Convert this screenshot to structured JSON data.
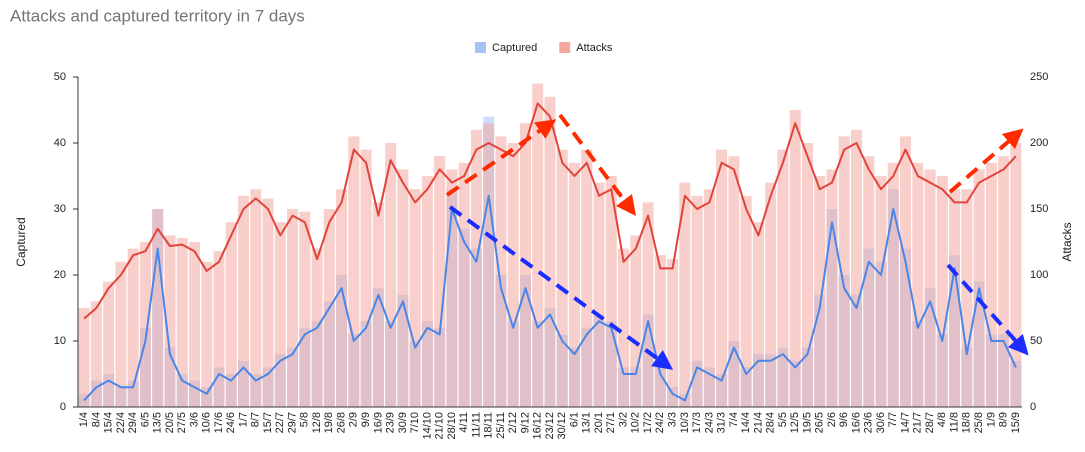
{
  "chart_data": {
    "type": "combo",
    "title": "Attacks and captured territory in 7 days",
    "y_label": "Captured",
    "y2_label": "Attacks",
    "categories": [
      "1/4",
      "8/4",
      "15/4",
      "22/4",
      "29/4",
      "6/5",
      "13/5",
      "20/5",
      "27/5",
      "3/6",
      "10/6",
      "17/6",
      "24/6",
      "1/7",
      "8/7",
      "15/7",
      "22/7",
      "29/7",
      "5/8",
      "12/8",
      "19/8",
      "26/8",
      "2/9",
      "9/9",
      "16/9",
      "23/9",
      "30/9",
      "7/10",
      "14/10",
      "21/10",
      "28/10",
      "4/11",
      "11/11",
      "18/11",
      "25/11",
      "2/12",
      "9/12",
      "16/12",
      "23/12",
      "30/12",
      "6/1",
      "13/1",
      "20/1",
      "27/1",
      "3/2",
      "10/2",
      "17/2",
      "24/2",
      "3/3",
      "10/3",
      "17/3",
      "24/3",
      "31/3",
      "7/4",
      "14/4",
      "21/4",
      "28/4",
      "5/5",
      "12/5",
      "19/5",
      "26/5",
      "2/6",
      "9/6",
      "16/6",
      "23/6",
      "30/6",
      "7/7",
      "14/7",
      "21/7",
      "28/7",
      "4/8",
      "11/8",
      "18/8",
      "25/8",
      "1/9",
      "8/9",
      "15/9"
    ],
    "series": [
      {
        "name": "Captured",
        "color": "#a4c2f4",
        "line_color": "#4a86e8",
        "axis": "y",
        "values": [
          2,
          4,
          5,
          3,
          4,
          12,
          30,
          9,
          5,
          4,
          3,
          6,
          5,
          7,
          5,
          6,
          8,
          9,
          12,
          13,
          16,
          20,
          11,
          13,
          18,
          13,
          17,
          10,
          13,
          12,
          33,
          27,
          24,
          44,
          20,
          13,
          20,
          13,
          15,
          11,
          9,
          12,
          14,
          13,
          6,
          6,
          14,
          6,
          3,
          2,
          7,
          6,
          5,
          10,
          6,
          8,
          8,
          9,
          7,
          9,
          17,
          30,
          20,
          17,
          24,
          22,
          33,
          24,
          13,
          18,
          11,
          23,
          9,
          19,
          11,
          11,
          7
        ],
        "average": [
          1,
          3,
          4,
          3,
          3,
          10,
          24,
          8,
          4,
          3,
          2,
          5,
          4,
          6,
          4,
          5,
          7,
          8,
          11,
          12,
          15,
          18,
          10,
          12,
          17,
          12,
          16,
          9,
          12,
          11,
          30,
          25,
          22,
          32,
          18,
          12,
          18,
          12,
          14,
          10,
          8,
          11,
          13,
          12,
          5,
          5,
          13,
          5,
          2,
          1,
          6,
          5,
          4,
          9,
          5,
          7,
          7,
          8,
          6,
          8,
          15,
          28,
          18,
          15,
          22,
          20,
          30,
          22,
          12,
          16,
          10,
          21,
          8,
          18,
          10,
          10,
          6
        ]
      },
      {
        "name": "Attacks",
        "color": "#f4a8a2",
        "line_color": "#e0443a",
        "axis": "y2",
        "values": [
          75,
          80,
          95,
          110,
          120,
          125,
          150,
          130,
          128,
          125,
          110,
          118,
          140,
          160,
          165,
          158,
          140,
          150,
          148,
          120,
          150,
          165,
          205,
          195,
          155,
          200,
          180,
          165,
          175,
          190,
          180,
          185,
          210,
          215,
          205,
          200,
          215,
          245,
          235,
          195,
          185,
          195,
          170,
          175,
          120,
          130,
          155,
          115,
          112,
          170,
          160,
          165,
          195,
          190,
          160,
          140,
          170,
          195,
          225,
          200,
          175,
          180,
          205,
          210,
          190,
          175,
          185,
          205,
          185,
          180,
          175,
          165,
          165,
          180,
          185,
          190,
          200
        ],
        "average": [
          67,
          75,
          90,
          100,
          115,
          118,
          135,
          122,
          123,
          118,
          103,
          110,
          130,
          150,
          158,
          150,
          130,
          145,
          140,
          112,
          140,
          155,
          195,
          185,
          145,
          187,
          170,
          155,
          165,
          180,
          170,
          175,
          195,
          200,
          195,
          190,
          200,
          230,
          220,
          185,
          175,
          185,
          160,
          165,
          110,
          120,
          145,
          105,
          105,
          160,
          150,
          155,
          185,
          180,
          150,
          130,
          160,
          185,
          215,
          190,
          165,
          170,
          195,
          200,
          180,
          165,
          175,
          195,
          175,
          170,
          165,
          155,
          155,
          170,
          175,
          180,
          190
        ]
      }
    ],
    "ylim": [
      0,
      50
    ],
    "yticks": [
      0,
      10,
      20,
      30,
      40,
      50
    ],
    "y2lim": [
      0,
      250
    ],
    "y2ticks": [
      0,
      50,
      100,
      150,
      200,
      250
    ],
    "legend": "top"
  }
}
